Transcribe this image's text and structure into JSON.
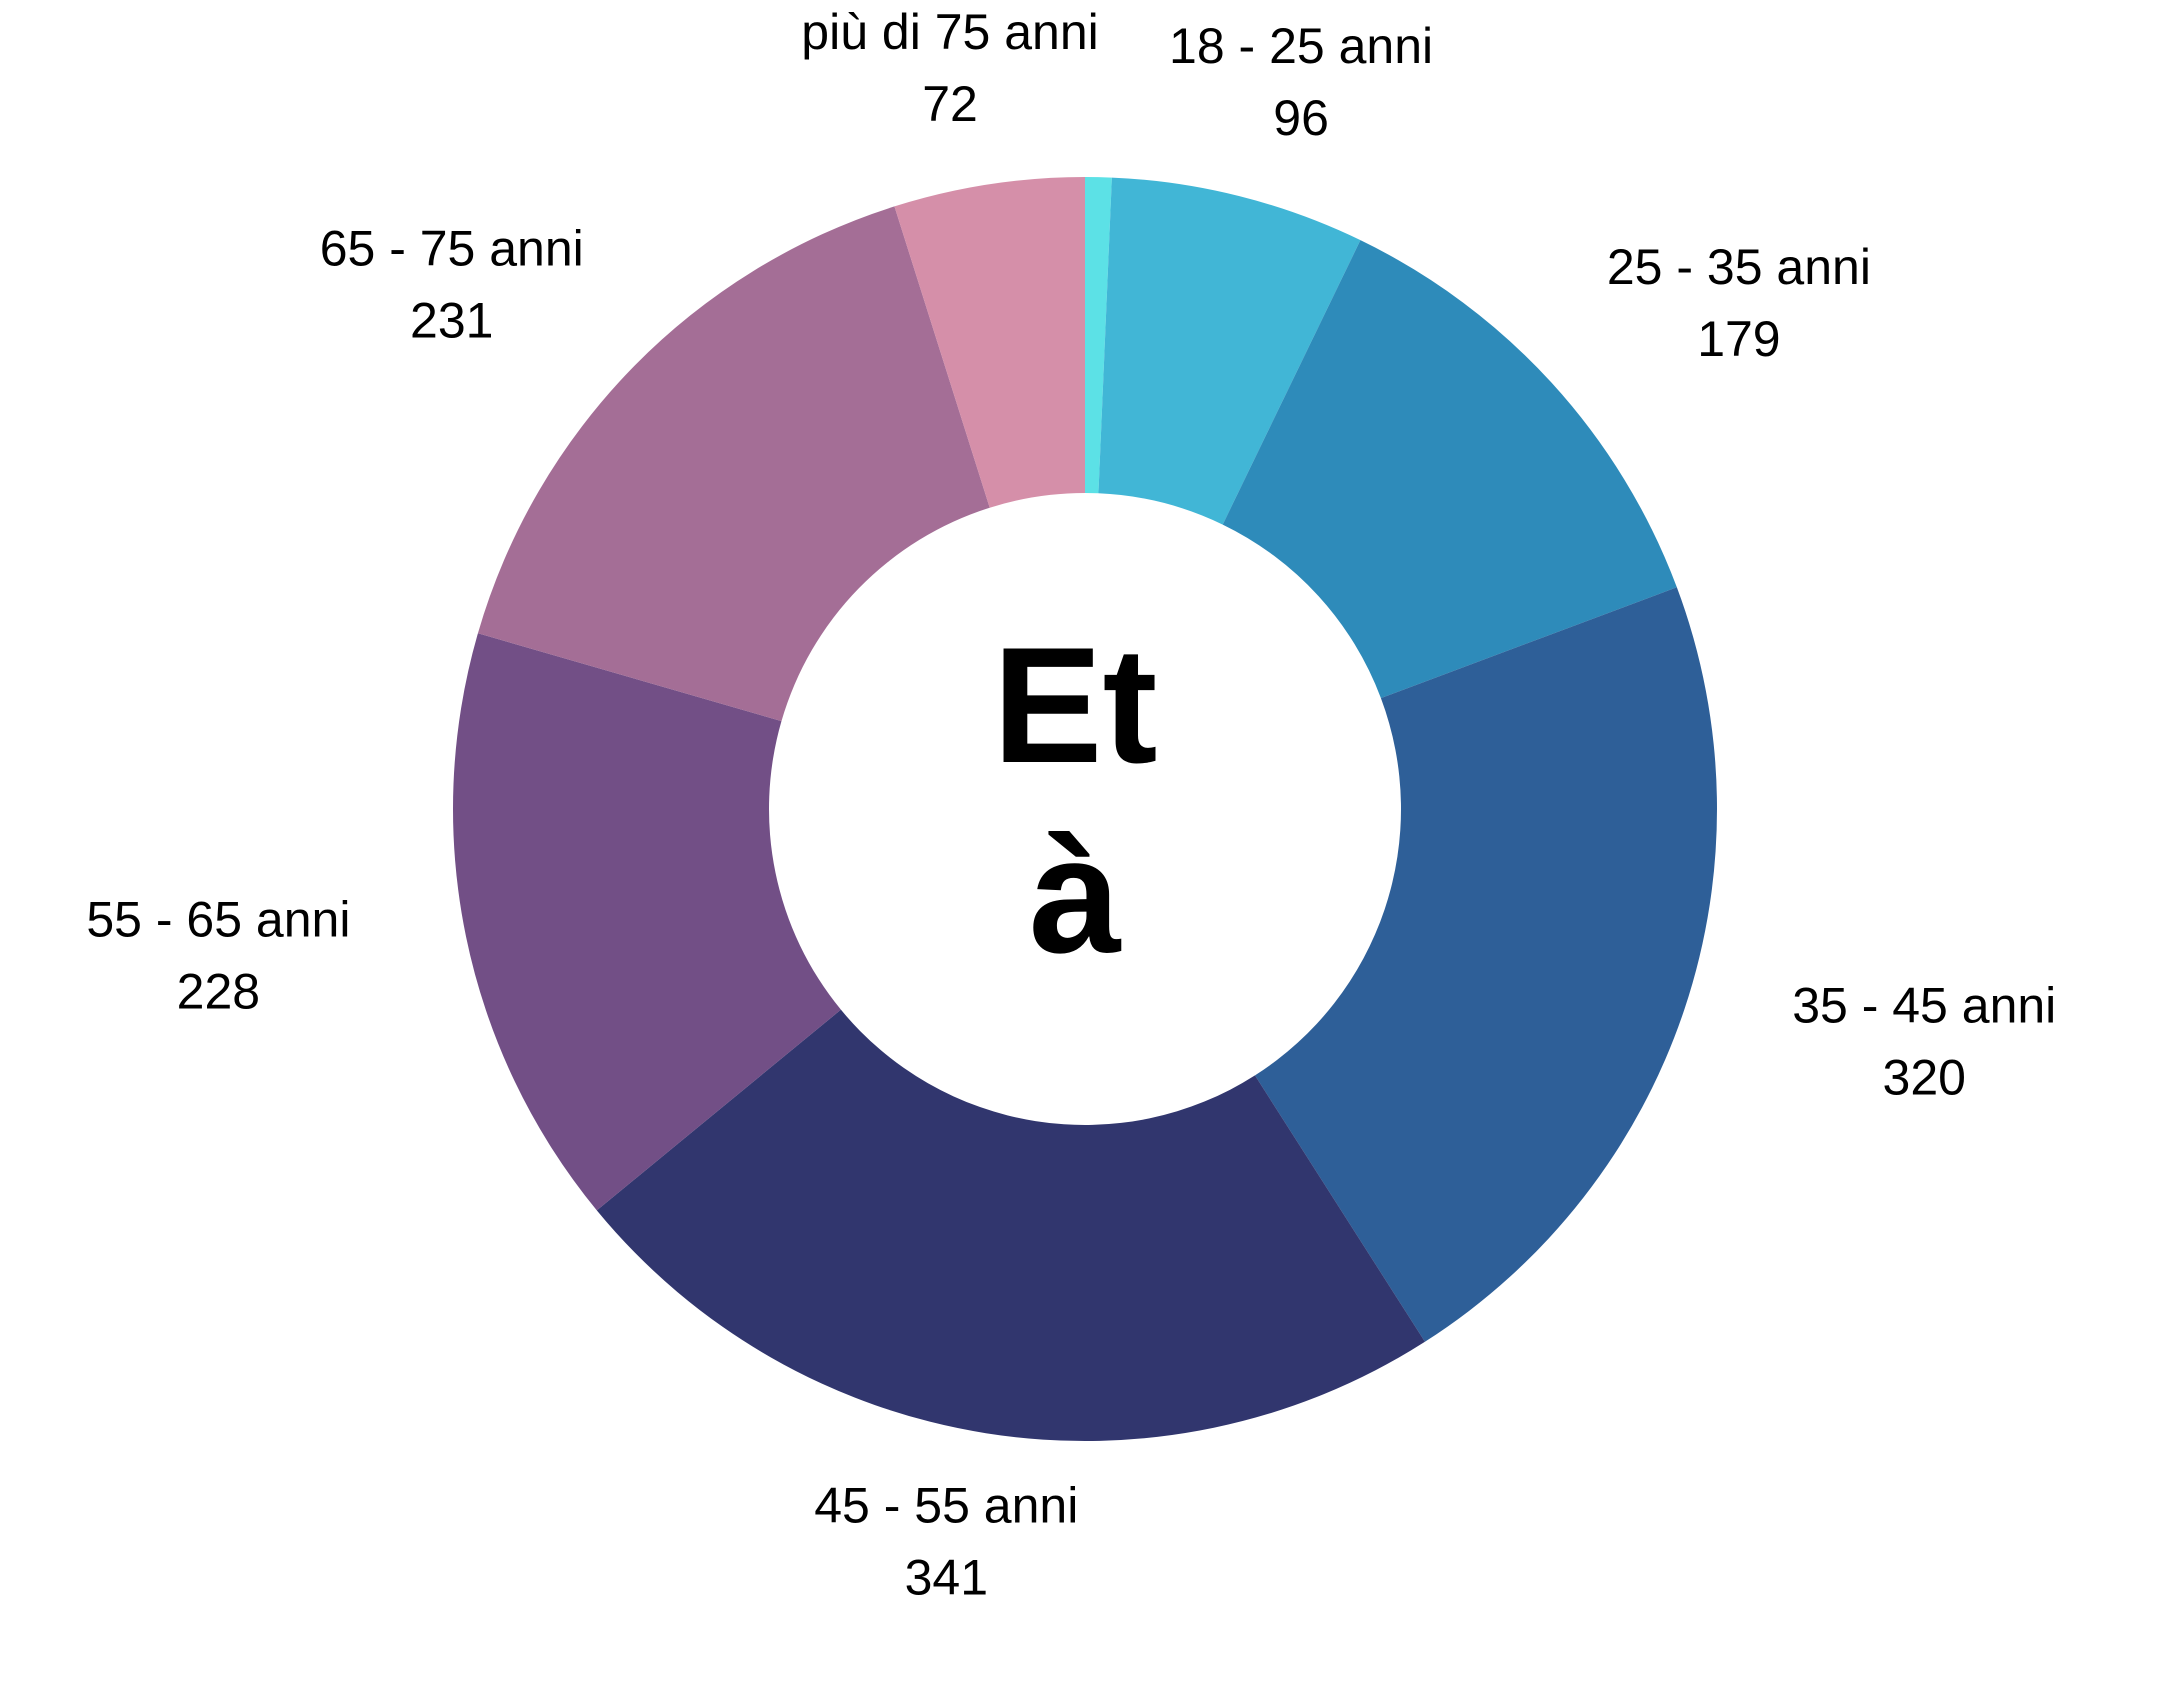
{
  "chart_data": {
    "type": "donut",
    "title": "Età",
    "categories": [
      null,
      "18 - 25 anni",
      "25 - 35 anni",
      "35 - 45 anni",
      "45 - 55 anni",
      "55 - 65 anni",
      "65 - 75 anni",
      "più di 75 anni"
    ],
    "values": [
      10,
      96,
      179,
      320,
      341,
      228,
      231,
      72
    ],
    "colors": [
      "#5ce1e6",
      "#41b6d6",
      "#2e8bba",
      "#2e5f98",
      "#31366e",
      "#724f86",
      "#a46e96",
      "#d58fa9"
    ]
  }
}
